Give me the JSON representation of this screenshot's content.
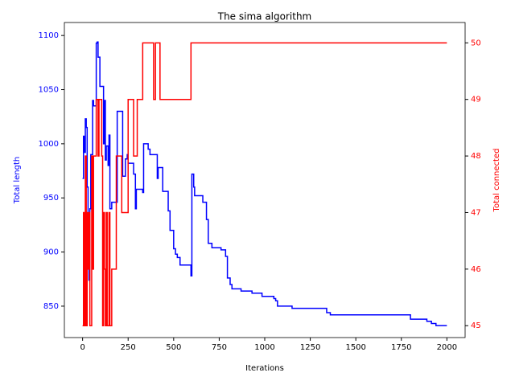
{
  "chart_data": {
    "type": "line",
    "title": "The sima algorithm",
    "xlabel": "Iterations",
    "ylabel": "Total length",
    "y2label": "Total connected",
    "drawstyle": "steps-post",
    "xlim": [
      -100,
      2100
    ],
    "xticks": [
      0,
      250,
      500,
      750,
      1000,
      1250,
      1500,
      1750,
      2000
    ],
    "ylim": [
      821,
      1112
    ],
    "yticks": [
      850,
      900,
      950,
      1000,
      1050,
      1100
    ],
    "ycolor": "#0000ff",
    "y2lim": [
      44.79,
      50.36
    ],
    "y2ticks": [
      45,
      46,
      47,
      48,
      49,
      50
    ],
    "y2color": "#ff0000",
    "series": [
      {
        "color": "#0000ff",
        "x": [
          0,
          5,
          10,
          15,
          20,
          25,
          30,
          35,
          40,
          45,
          55,
          60,
          75,
          80,
          85,
          95,
          115,
          120,
          125,
          130,
          140,
          145,
          150,
          160,
          190,
          220,
          235,
          245,
          250,
          280,
          290,
          295,
          330,
          335,
          360,
          370,
          410,
          415,
          440,
          470,
          480,
          500,
          510,
          520,
          535,
          595,
          600,
          610,
          615,
          660,
          680,
          690,
          710,
          760,
          785,
          795,
          810,
          820,
          870,
          930,
          985,
          1050,
          1060,
          1070,
          1150,
          1340,
          1360,
          1800,
          1890,
          1915,
          1940,
          2000
        ],
        "values": [
          968,
          1007,
          992,
          1023,
          1015,
          960,
          900,
          874,
          940,
          990,
          1040,
          1035,
          1093,
          1094,
          1080,
          1053,
          1000,
          1040,
          985,
          998,
          980,
          1008,
          940,
          946,
          1030,
          970,
          986,
          990,
          982,
          972,
          940,
          958,
          955,
          1000,
          995,
          990,
          968,
          978,
          956,
          938,
          920,
          903,
          898,
          895,
          888,
          878,
          972,
          960,
          952,
          946,
          930,
          908,
          904,
          902,
          896,
          876,
          870,
          866,
          864,
          862,
          859,
          857,
          855,
          850,
          848,
          844,
          842,
          838,
          836,
          834,
          832,
          832
        ]
      },
      {
        "color": "#ff0000",
        "axis": "y2",
        "x": [
          0,
          5,
          10,
          15,
          20,
          25,
          30,
          35,
          40,
          50,
          55,
          60,
          75,
          85,
          90,
          105,
          110,
          115,
          120,
          125,
          130,
          135,
          145,
          150,
          160,
          185,
          215,
          250,
          280,
          300,
          330,
          390,
          400,
          425,
          595,
          2000
        ],
        "values": [
          45,
          47,
          45,
          48,
          45,
          47,
          46,
          47,
          45,
          48,
          46,
          48,
          49,
          48,
          49,
          48,
          45,
          47,
          46,
          45,
          47,
          45,
          47,
          45,
          46,
          48,
          47,
          49,
          48,
          49,
          50,
          49,
          50,
          49,
          50,
          50
        ]
      }
    ]
  }
}
